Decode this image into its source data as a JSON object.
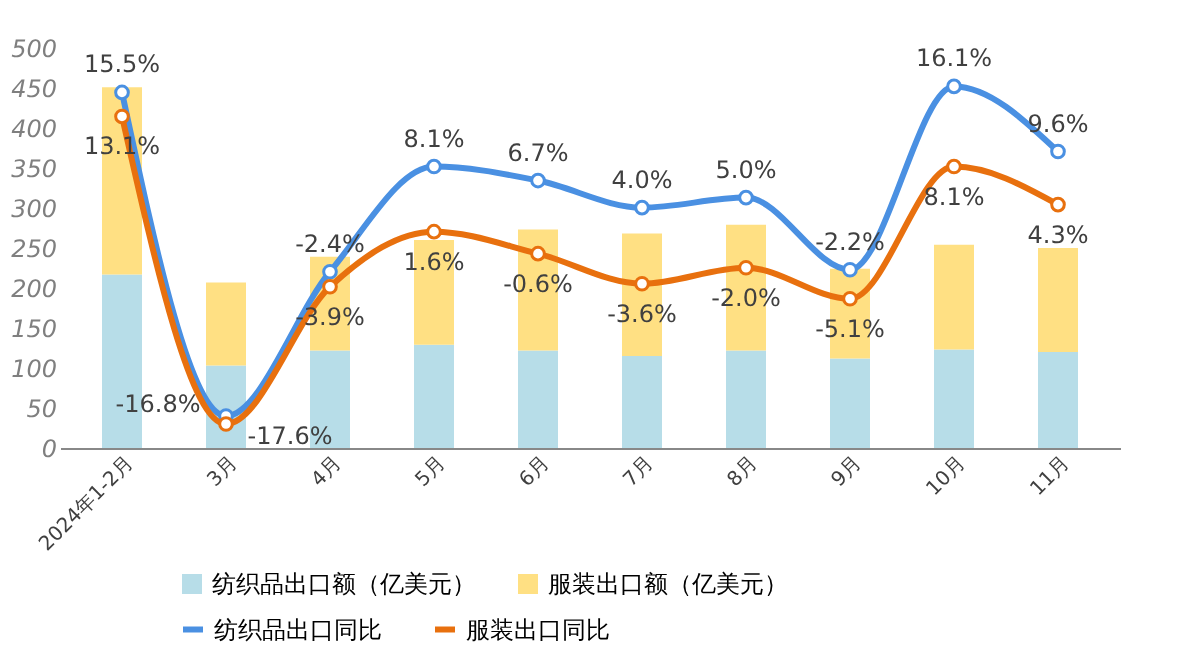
{
  "chart_data": {
    "type": "bar",
    "stacked": true,
    "categories": [
      "2024年1-2月",
      "3月",
      "4月",
      "5月",
      "6月",
      "7月",
      "8月",
      "9月",
      "10月",
      "11月"
    ],
    "ylim": [
      0,
      500
    ],
    "yticks": [
      0,
      50,
      100,
      150,
      200,
      250,
      300,
      350,
      400,
      450,
      500
    ],
    "grid": false,
    "legend": "bottom",
    "series": [
      {
        "name": "纺织品出口额（亿美元）",
        "color": "#b7dde8",
        "values": [
          217,
          103,
          122,
          129,
          122,
          115,
          122,
          112,
          123,
          120
        ]
      },
      {
        "name": "服装出口额（亿美元）",
        "color": "#ffe083",
        "values": [
          234,
          104,
          117,
          131,
          151,
          153,
          157,
          112,
          131,
          130
        ]
      },
      {
        "name": "纺织品出口同比",
        "type": "line",
        "axis": "y2",
        "color": "#4a90e2",
        "marker": "circle",
        "values": [
          15.5,
          -16.8,
          -2.4,
          8.1,
          6.7,
          4.0,
          5.0,
          -2.2,
          16.1,
          9.6
        ],
        "value_labels": [
          "15.5%",
          "-16.8%",
          "-2.4%",
          "8.1%",
          "6.7%",
          "4.0%",
          "5.0%",
          "-2.2%",
          "16.1%",
          "9.6%"
        ]
      },
      {
        "name": "服装出口同比",
        "type": "line",
        "axis": "y2",
        "color": "#e8700e",
        "marker": "circle",
        "values": [
          13.1,
          -17.6,
          -3.9,
          1.6,
          -0.6,
          -3.6,
          -2.0,
          -5.1,
          8.1,
          4.3
        ],
        "value_labels": [
          "13.1%",
          "-17.6%",
          "-3.9%",
          "1.6%",
          "-0.6%",
          "-3.6%",
          "-2.0%",
          "-5.1%",
          "8.1%",
          "4.3%"
        ]
      }
    ]
  }
}
